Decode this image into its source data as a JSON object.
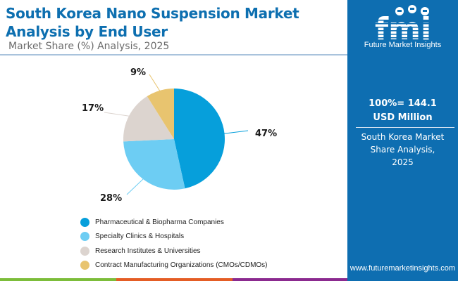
{
  "header": {
    "title": "South Korea Nano Suspension Market Analysis by End User",
    "subtitle": "Market Share (%) Analysis, 2025"
  },
  "right_panel": {
    "logo_text": "Future Market Insights",
    "total": "100%= 144.1 USD Million",
    "description": "South Korea Market Share Analysis, 2025",
    "url": "www.futuremarketinsights.com"
  },
  "chart_data": {
    "type": "pie",
    "title": "South Korea Nano Suspension Market Analysis by End User",
    "subtitle": "Market Share (%) Analysis, 2025",
    "total_label": "100%= 144.1 USD Million",
    "categories": [
      "Pharmaceutical & Biopharma Companies",
      "Specialty Clinics & Hospitals",
      "Research Institutes & Universities",
      "Contract Manufacturing Organizations (CMOs/CDMOs)"
    ],
    "values": [
      47,
      28,
      17,
      9
    ],
    "labels": [
      "47%",
      "28%",
      "17%",
      "9%"
    ],
    "colors": [
      "#069fdb",
      "#6dcdf3",
      "#dcd4cf",
      "#e8c46f"
    ],
    "legend_position": "bottom"
  },
  "legend": [
    {
      "label": "Pharmaceutical & Biopharma Companies",
      "color": "#069fdb"
    },
    {
      "label": "Specialty Clinics & Hospitals",
      "color": "#6dcdf3"
    },
    {
      "label": "Research Institutes & Universities",
      "color": "#dcd4cf"
    },
    {
      "label": "Contract Manufacturing Organizations (CMOs/CDMOs)",
      "color": "#e8c46f"
    }
  ],
  "bottom_bar_colors": [
    "#7cbd3a",
    "#e45d25",
    "#8b2a8f"
  ]
}
